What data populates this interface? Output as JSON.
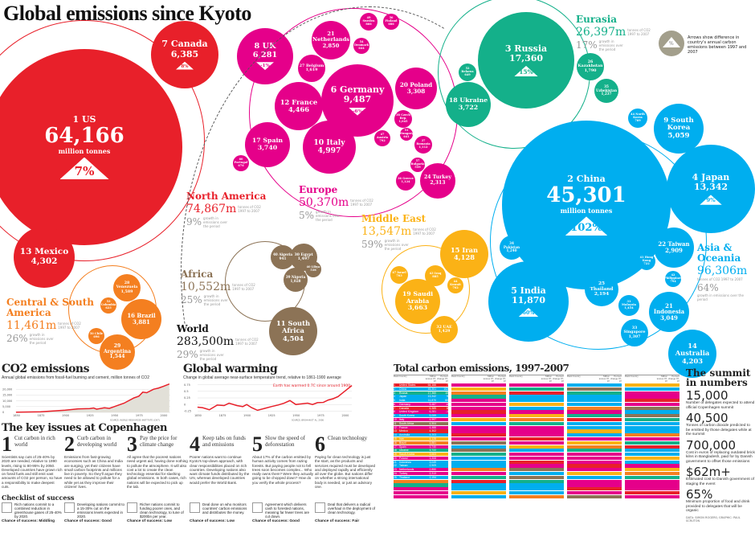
{
  "title": "Global emissions since Kyoto",
  "legend": {
    "symbol": "%",
    "text": "Arrows show difference in country's annual carbon emissions between 1997 and 2007"
  },
  "region_notes": {
    "total": "tonnes of CO2 1997 to 2007",
    "growth": "growth in emissions over the period"
  },
  "million_tonnes": "million tonnes",
  "regions": [
    {
      "id": "north-america",
      "name": "North America",
      "total": "74,867m",
      "growth": "9%",
      "color": "#e8202a",
      "countries": [
        {
          "rank": "1",
          "name": "US",
          "value": "64,166",
          "change": "7%"
        },
        {
          "rank": "7",
          "name": "Canada",
          "value": "6,385",
          "change": "8%"
        },
        {
          "rank": "13",
          "name": "Mexico",
          "value": "4,302"
        }
      ]
    },
    {
      "id": "europe",
      "name": "Europe",
      "total": "50,370m",
      "growth": "5%",
      "color": "#e5008a",
      "countries": [
        {
          "rank": "6",
          "name": "Germany",
          "value": "9,487",
          "change": "-6%"
        },
        {
          "rank": "8",
          "name": "UK",
          "value": "6,281",
          "change": "-1%"
        },
        {
          "rank": "10",
          "name": "Italy",
          "value": "4,997"
        },
        {
          "rank": "12",
          "name": "France",
          "value": "4,466"
        },
        {
          "rank": "17",
          "name": "Spain",
          "value": "3,740"
        },
        {
          "rank": "20",
          "name": "Poland",
          "value": "3,308"
        },
        {
          "rank": "21",
          "name": "Netherlands",
          "value": "2,850"
        },
        {
          "rank": "24",
          "name": "Turkey",
          "value": "2,313"
        },
        {
          "rank": "27",
          "name": "Belgium",
          "value": "1,619"
        },
        {
          "rank": "36",
          "name": "Greece",
          "value": "1,124"
        },
        {
          "rank": "37",
          "name": "Romania",
          "value": "1,112"
        },
        {
          "rank": "38",
          "name": "Czech Rep.",
          "value": "1,045"
        },
        {
          "rank": "60",
          "name": "Portugal",
          "value": "676"
        },
        {
          "rank": "49",
          "name": "Sweden",
          "value": "866"
        },
        {
          "rank": "56",
          "name": "Finland",
          "value": "686"
        },
        {
          "rank": "54",
          "name": "Denmark",
          "value": "644"
        },
        {
          "rank": "47",
          "name": "Austria",
          "value": "792"
        },
        {
          "rank": "51",
          "name": "Hungary",
          "value": "641"
        },
        {
          "rank": "57",
          "name": "Bulgaria",
          "value": "559"
        }
      ]
    },
    {
      "id": "eurasia",
      "name": "Eurasia",
      "total": "26,397m",
      "growth": "17%",
      "color": "#14b08a",
      "countries": [
        {
          "rank": "3",
          "name": "Russia",
          "value": "17,360",
          "change": "15%"
        },
        {
          "rank": "18",
          "name": "Ukraine",
          "value": "3,722"
        },
        {
          "rank": "26",
          "name": "Kazakhstan",
          "value": "1,790"
        },
        {
          "rank": "35",
          "name": "Uzbekistan",
          "value": "1,237"
        },
        {
          "rank": "52",
          "name": "Belarus",
          "value": "649"
        }
      ]
    },
    {
      "id": "asia-oceania",
      "name": "Asia & Oceania",
      "total": "96,306m",
      "growth": "64%",
      "color": "#00aeef",
      "countries": [
        {
          "rank": "2",
          "name": "China",
          "value": "45,301",
          "change": "102%"
        },
        {
          "rank": "4",
          "name": "Japan",
          "value": "13,342",
          "change": "9%"
        },
        {
          "rank": "5",
          "name": "India",
          "value": "11,870",
          "change": "60%"
        },
        {
          "rank": "9",
          "name": "South Korea",
          "value": "5,059"
        },
        {
          "rank": "14",
          "name": "Australia",
          "value": "4,203"
        },
        {
          "rank": "21",
          "name": "Indonesia",
          "value": "3,049"
        },
        {
          "rank": "22",
          "name": "Taiwan",
          "value": "2,909"
        },
        {
          "rank": "25",
          "name": "Thailand",
          "value": "2,194"
        },
        {
          "rank": "31",
          "name": "Malaysia",
          "value": "1,454"
        },
        {
          "rank": "33",
          "name": "Singapore",
          "value": "1,307"
        },
        {
          "rank": "34",
          "name": "Pakistan",
          "value": "1,240"
        },
        {
          "rank": "44",
          "name": "North Korea",
          "value": "769"
        },
        {
          "rank": "41",
          "name": "Hong Kong",
          "value": "722"
        },
        {
          "rank": "42",
          "name": "Philippines",
          "value": "794"
        }
      ]
    },
    {
      "id": "middle-east",
      "name": "Middle East",
      "total": "13,547m",
      "growth": "59%",
      "color": "#fbb216",
      "countries": [
        {
          "rank": "15",
          "name": "Iran",
          "value": "4,128"
        },
        {
          "rank": "19",
          "name": "Saudi Arabia",
          "value": "3,663"
        },
        {
          "rank": "32",
          "name": "UAE",
          "value": "1,429"
        },
        {
          "rank": "43",
          "name": "Iraq",
          "value": "885"
        },
        {
          "rank": "44",
          "name": "Kuwait",
          "value": "702"
        },
        {
          "rank": "47",
          "name": "Israel",
          "value": "703"
        }
      ]
    },
    {
      "id": "africa",
      "name": "Africa",
      "total": "10,552m",
      "growth": "25%",
      "color": "#8c7356",
      "countries": [
        {
          "rank": "11",
          "name": "South Africa",
          "value": "4,504"
        },
        {
          "rank": "30",
          "name": "Egypt",
          "value": "1,497"
        },
        {
          "rank": "39",
          "name": "Nigeria",
          "value": "1,028"
        },
        {
          "rank": "40",
          "name": "Algeria",
          "value": "941"
        },
        {
          "rank": "40",
          "name": "Libya",
          "value": "538"
        }
      ]
    },
    {
      "id": "central-south-america",
      "name": "Central & South America",
      "total": "11,461m",
      "growth": "26%",
      "color": "#f47f20",
      "countries": [
        {
          "rank": "16",
          "name": "Brazil",
          "value": "3,881"
        },
        {
          "rank": "28",
          "name": "Venezuela",
          "value": "1,589"
        },
        {
          "rank": "29",
          "name": "Argentina",
          "value": "1,544"
        },
        {
          "rank": "53",
          "name": "Colombia",
          "value": "623"
        },
        {
          "rank": "50",
          "name": "Chile",
          "value": "696"
        }
      ]
    }
  ],
  "world": {
    "name": "World",
    "total": "283,500m",
    "growth": "29%"
  },
  "chart_data": [
    {
      "type": "area",
      "title": "CO2 emissions",
      "subtitle": "Annual global emissions from fossil-fuel burning and cement, million tonnes of CO2",
      "source": "SOURCE: WORLD RESOURCES INSTITUTE (CAIT)",
      "x": [
        1850,
        1875,
        1900,
        1913,
        1925,
        1929,
        1932,
        1940,
        1945,
        1950,
        1960,
        1970,
        1975,
        1979,
        1983,
        1990,
        1995,
        2000,
        2006
      ],
      "y": [
        200,
        500,
        1900,
        3000,
        3300,
        3800,
        2800,
        4000,
        3500,
        5000,
        8000,
        12500,
        14000,
        17500,
        17000,
        20000,
        21000,
        22500,
        24500
      ],
      "xticks": [
        1850,
        1875,
        1900,
        1925,
        1950,
        1975,
        2000
      ],
      "yticks": [
        0,
        5000,
        10000,
        15000,
        20000
      ],
      "ytick_labels": [
        "0",
        "5,000",
        "10,000",
        "15,000",
        "20,000"
      ],
      "ylim": [
        0,
        25000
      ],
      "color": "#e8202a"
    },
    {
      "type": "line",
      "title": "Global warming",
      "subtitle": "Change in global average near-surface temperature trend, relative to 1861-1900 average",
      "annotation": "Earth has warmed 0.7C since around 1900",
      "source": "SOURCE: BROHAN ET AL. 2006",
      "x": [
        1850,
        1855,
        1862,
        1870,
        1877,
        1882,
        1890,
        1896,
        1900,
        1905,
        1911,
        1918,
        1925,
        1932,
        1938,
        1944,
        1950,
        1955,
        1962,
        1967,
        1972,
        1978,
        1983,
        1988,
        1993,
        1998,
        2003,
        2007
      ],
      "y": [
        -0.1,
        -0.12,
        -0.2,
        -0.02,
        -0.04,
        0.05,
        -0.04,
        -0.08,
        0,
        -0.12,
        -0.22,
        -0.15,
        -0.08,
        -0.02,
        0.05,
        0.15,
        0,
        0.02,
        0.05,
        0.0,
        0.07,
        0.08,
        0.17,
        0.22,
        0.3,
        0.45,
        0.6,
        0.72
      ],
      "xticks": [
        1850,
        1875,
        1900,
        1925,
        1950,
        1975,
        2000
      ],
      "yticks": [
        -0.25,
        0,
        0.25,
        0.5,
        0.75
      ],
      "ytick_labels": [
        "-0.25",
        "0",
        "0.25",
        "0.5",
        "0.75"
      ],
      "ylim": [
        -0.3,
        0.8
      ],
      "color": "#e8202a"
    }
  ],
  "issues": {
    "title": "The key issues at Copenhagen",
    "items": [
      {
        "num": "1",
        "title": "Cut carbon in rich world",
        "body": "Scientists say cuts of 25-40% by 2020 are needed, relative to 1990 levels, rising to 80-95% by 2050. Developed countries have grown rich on fossil fuels and still emit vast amounts of CO2 per person, so have a responsibility to make deepest cuts.",
        "check": "Rich nations commit to a combined reduction in greenhouse gases of 25-40% by 2020.",
        "chance": "Chance of success: Middling"
      },
      {
        "num": "2",
        "title": "Curb carbon in developing world",
        "body": "Emissions from fast-growing economies such as China and India are surging, yet their citizens have small carbon footprints and millions live in poverty. So they'll argue they need to be allowed to pollute for a while yet as they improve their citizens' lives.",
        "check": "Developing nations commit to a 15-30% cut on the emissions levels expected in 2020.",
        "chance": "Chance of success: Good"
      },
      {
        "num": "3",
        "title": "Pay the price for climate change",
        "body": "All agree that the poorest nations need urgent aid, having done nothing to pollute the atmosphere. It will also cost a lot to create the clean technology essential for slashing global emissions. In both cases, rich nations will be expected to pick up the tab.",
        "check": "Richer nations commit to funding poorer ones, and clean technology, to tune of $200bn per year.",
        "chance": "Chance of success: Low"
      },
      {
        "num": "4",
        "title": "Keep tabs on funds and emissions",
        "body": "Poorer nations want to continue Kyoto's top-down approach, with clear responsibilities placed on rich countries. Developing nations also want climate funds distributed by the UN, whereas developed countries would prefer the World Bank.",
        "check": "Deal done on who monitors countries' carbon emissions and distributes the money.",
        "chance": "Chance of success: Low"
      },
      {
        "num": "5",
        "title": "Slow the speed of deforestation",
        "body": "About 17% of the carbon emitted by human activity comes from razing forests. But paying people not to fell trees soon becomes complex... Who really owns them? Were they actually going to be chopped down? How do you verify the whole process?",
        "check": "Agreement which delivers cash to forested nations, meaning far fewer trees are cut down.",
        "chance": "Chance of success: Good"
      },
      {
        "num": "6",
        "title": "Clean technology",
        "body": "Paying for clean technology is just the start, as the products and services required must be developed and deployed rapidly and efficiently all over the globe. But nations differ on whether a strong international body is needed, or just an advisory one.",
        "check": "Deal that delivers a radical overhaul in the deployment of clean technology.",
        "chance": "Chance of success: Fair"
      }
    ],
    "checklist_title": "Checklist of success"
  },
  "table": {
    "title": "Total carbon emissions, 1997-2007",
    "headers": [
      "Rank",
      "Country",
      "Million tonnes 97-07",
      "Percent change 97-07"
    ],
    "rows": [
      [
        "1",
        "United States",
        "64,166",
        "7"
      ],
      [
        "2",
        "China",
        "45,301",
        "102"
      ],
      [
        "3",
        "Russia",
        "17,360",
        "15"
      ],
      [
        "4",
        "Japan",
        "13,342",
        "9"
      ],
      [
        "5",
        "India",
        "11,870",
        "60"
      ],
      [
        "6",
        "Germany",
        "9,487",
        "-6"
      ],
      [
        "7",
        "Canada",
        "6,385",
        "8"
      ],
      [
        "8",
        "United Kingdom",
        "6,281",
        "-1"
      ],
      [
        "9",
        "South Korea",
        "5,059",
        ""
      ],
      [
        "10",
        "Italy",
        "4,997",
        ""
      ],
      [
        "11",
        "South Africa",
        "4,504",
        ""
      ],
      [
        "12",
        "France",
        "4,466",
        ""
      ],
      [
        "13",
        "Mexico",
        "4,302",
        ""
      ],
      [
        "14",
        "Australia",
        "4,203",
        ""
      ],
      [
        "15",
        "Iran",
        "4,128",
        ""
      ],
      [
        "16",
        "Brazil",
        "3,881",
        ""
      ],
      [
        "17",
        "Spain",
        "3,740",
        ""
      ],
      [
        "18",
        "Ukraine",
        "3,722",
        ""
      ],
      [
        "19",
        "Saudi Arabia",
        "3,663",
        ""
      ],
      [
        "20",
        "Poland",
        "3,308",
        ""
      ],
      [
        "21",
        "Indonesia",
        "3,049",
        ""
      ],
      [
        "22",
        "Taiwan",
        "2,909",
        ""
      ],
      [
        "23",
        "Netherlands",
        "2,850",
        ""
      ],
      [
        "24",
        "Turkey",
        "2,313",
        ""
      ],
      [
        "25",
        "Thailand",
        "2,194",
        ""
      ]
    ]
  },
  "summit": {
    "title": "The summit in numbers",
    "items": [
      {
        "num": "15,000",
        "text": "Number of delegates expected to attend official Copenhagen summit"
      },
      {
        "num": "40,500",
        "text": "Tonnes of carbon dioxide predicted to be emitted by those delegates while at the summit"
      },
      {
        "num": "700,000",
        "text": "Cost in euros of replacing outdated brick kilns in Bangladesh, paid for by Danish government to offset those emissions"
      },
      {
        "num": "$62m+",
        "text": "Estimated cost to Danish government of staging the event"
      },
      {
        "num": "65%",
        "text": "Minimum proportion of food and drink provided to delegates that will be organic"
      }
    ],
    "credit": "DATA: SIMON ROGERS; GRAPHIC: PAUL SCRUTON"
  }
}
